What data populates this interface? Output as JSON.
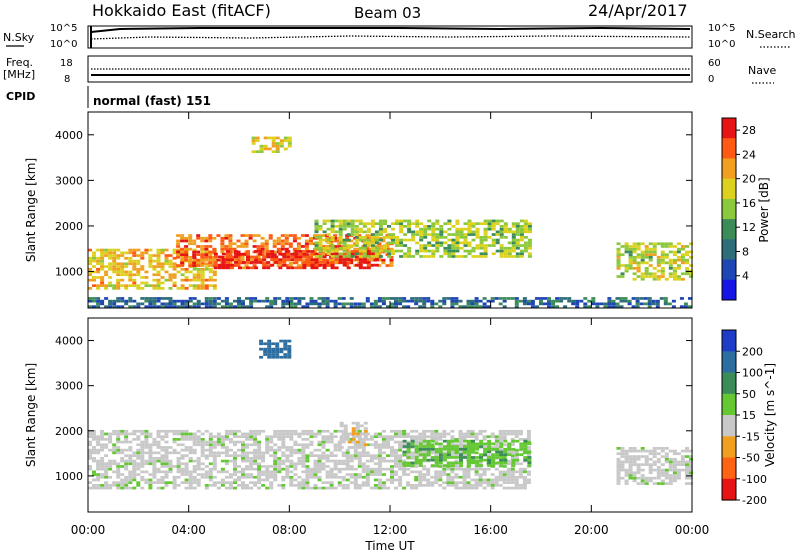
{
  "header": {
    "station": "Hokkaido East (fitACF)",
    "beam": "Beam 03",
    "date": "24/Apr/2017"
  },
  "status_panel": {
    "nsky_label": "N.Sky",
    "nsky_top_tick": "10^5",
    "nsky_bottom_tick": "10^0",
    "nsearch_label": "N.Search",
    "nsearch_top_tick": "10^5",
    "nsearch_bottom_tick": "10^0",
    "freq_label": "Freq.",
    "freq_unit": "[MHz]",
    "freq_top_tick": "18",
    "freq_bottom_tick": "8",
    "nave_label": "Nave",
    "nave_top_tick": "60",
    "nave_bottom_tick": "0",
    "cpid_label": "CPID",
    "cpid_value": "normal (fast) 151"
  },
  "x_axis": {
    "label": "Time UT",
    "ticks": [
      "00:00",
      "04:00",
      "08:00",
      "12:00",
      "16:00",
      "20:00",
      "00:00"
    ]
  },
  "colors": {
    "power": [
      "#1515e6",
      "#1e46b4",
      "#2d6e7a",
      "#3c8c5a",
      "#8cc83c",
      "#dcd21e",
      "#f0a01e",
      "#ff5a14",
      "#e61414"
    ],
    "velocity": [
      "#e61414",
      "#ff6414",
      "#f0a01e",
      "#c8c8c8",
      "#64c832",
      "#3c8c5a",
      "#2d6ea0",
      "#1e3cc8"
    ]
  },
  "chart_data": [
    {
      "type": "heatmap",
      "panel": "power",
      "ylabel": "Slant Range [km]",
      "y_ticks": [
        "1000",
        "2000",
        "3000",
        "4000"
      ],
      "ylim": [
        200,
        4500
      ],
      "xlim_hours": [
        0,
        24
      ],
      "colorbar_label": "Power [dB]",
      "colorbar_ticks": [
        "4",
        "8",
        "12",
        "16",
        "20",
        "24",
        "28"
      ],
      "colorbar_range": [
        0,
        30
      ],
      "echo_regions": [
        {
          "t0": 0.0,
          "t1": 5.0,
          "r0": 600,
          "r1": 1500,
          "level": 20
        },
        {
          "t0": 3.5,
          "t1": 12.0,
          "r0": 1100,
          "r1": 1800,
          "level": 24
        },
        {
          "t0": 5.0,
          "t1": 11.5,
          "r0": 1050,
          "r1": 1450,
          "level": 27
        },
        {
          "t0": 9.0,
          "t1": 17.5,
          "r0": 1300,
          "r1": 2100,
          "level": 16
        },
        {
          "t0": 6.5,
          "t1": 8.0,
          "r0": 3600,
          "r1": 3950,
          "level": 18
        },
        {
          "t0": 21.0,
          "t1": 24.0,
          "r0": 800,
          "r1": 1600,
          "level": 17
        },
        {
          "t0": 0.0,
          "t1": 24.0,
          "r0": 200,
          "r1": 400,
          "level": 8
        }
      ]
    },
    {
      "type": "heatmap",
      "panel": "velocity",
      "ylabel": "Slant Range [km]",
      "y_ticks": [
        "1000",
        "2000",
        "3000",
        "4000"
      ],
      "ylim": [
        200,
        4500
      ],
      "xlim_hours": [
        0,
        24
      ],
      "colorbar_label": "Velocity [m s^-1]",
      "colorbar_ticks": [
        "200",
        "100",
        "50",
        "15",
        "-15",
        "-50",
        "-100",
        "-200"
      ],
      "colorbar_range": [
        -250,
        250
      ],
      "echo_regions": [
        {
          "t0": 0.0,
          "t1": 17.5,
          "r0": 700,
          "r1": 2000,
          "level": 0
        },
        {
          "t0": 6.8,
          "t1": 8.0,
          "r0": 3600,
          "r1": 4000,
          "level": 180
        },
        {
          "t0": 10.0,
          "t1": 11.0,
          "r0": 1600,
          "r1": 2200,
          "level": -40
        },
        {
          "t0": 12.5,
          "t1": 17.5,
          "r0": 1200,
          "r1": 1800,
          "level": 40
        },
        {
          "t0": 21.0,
          "t1": 24.0,
          "r0": 800,
          "r1": 1600,
          "level": 0
        }
      ]
    }
  ]
}
